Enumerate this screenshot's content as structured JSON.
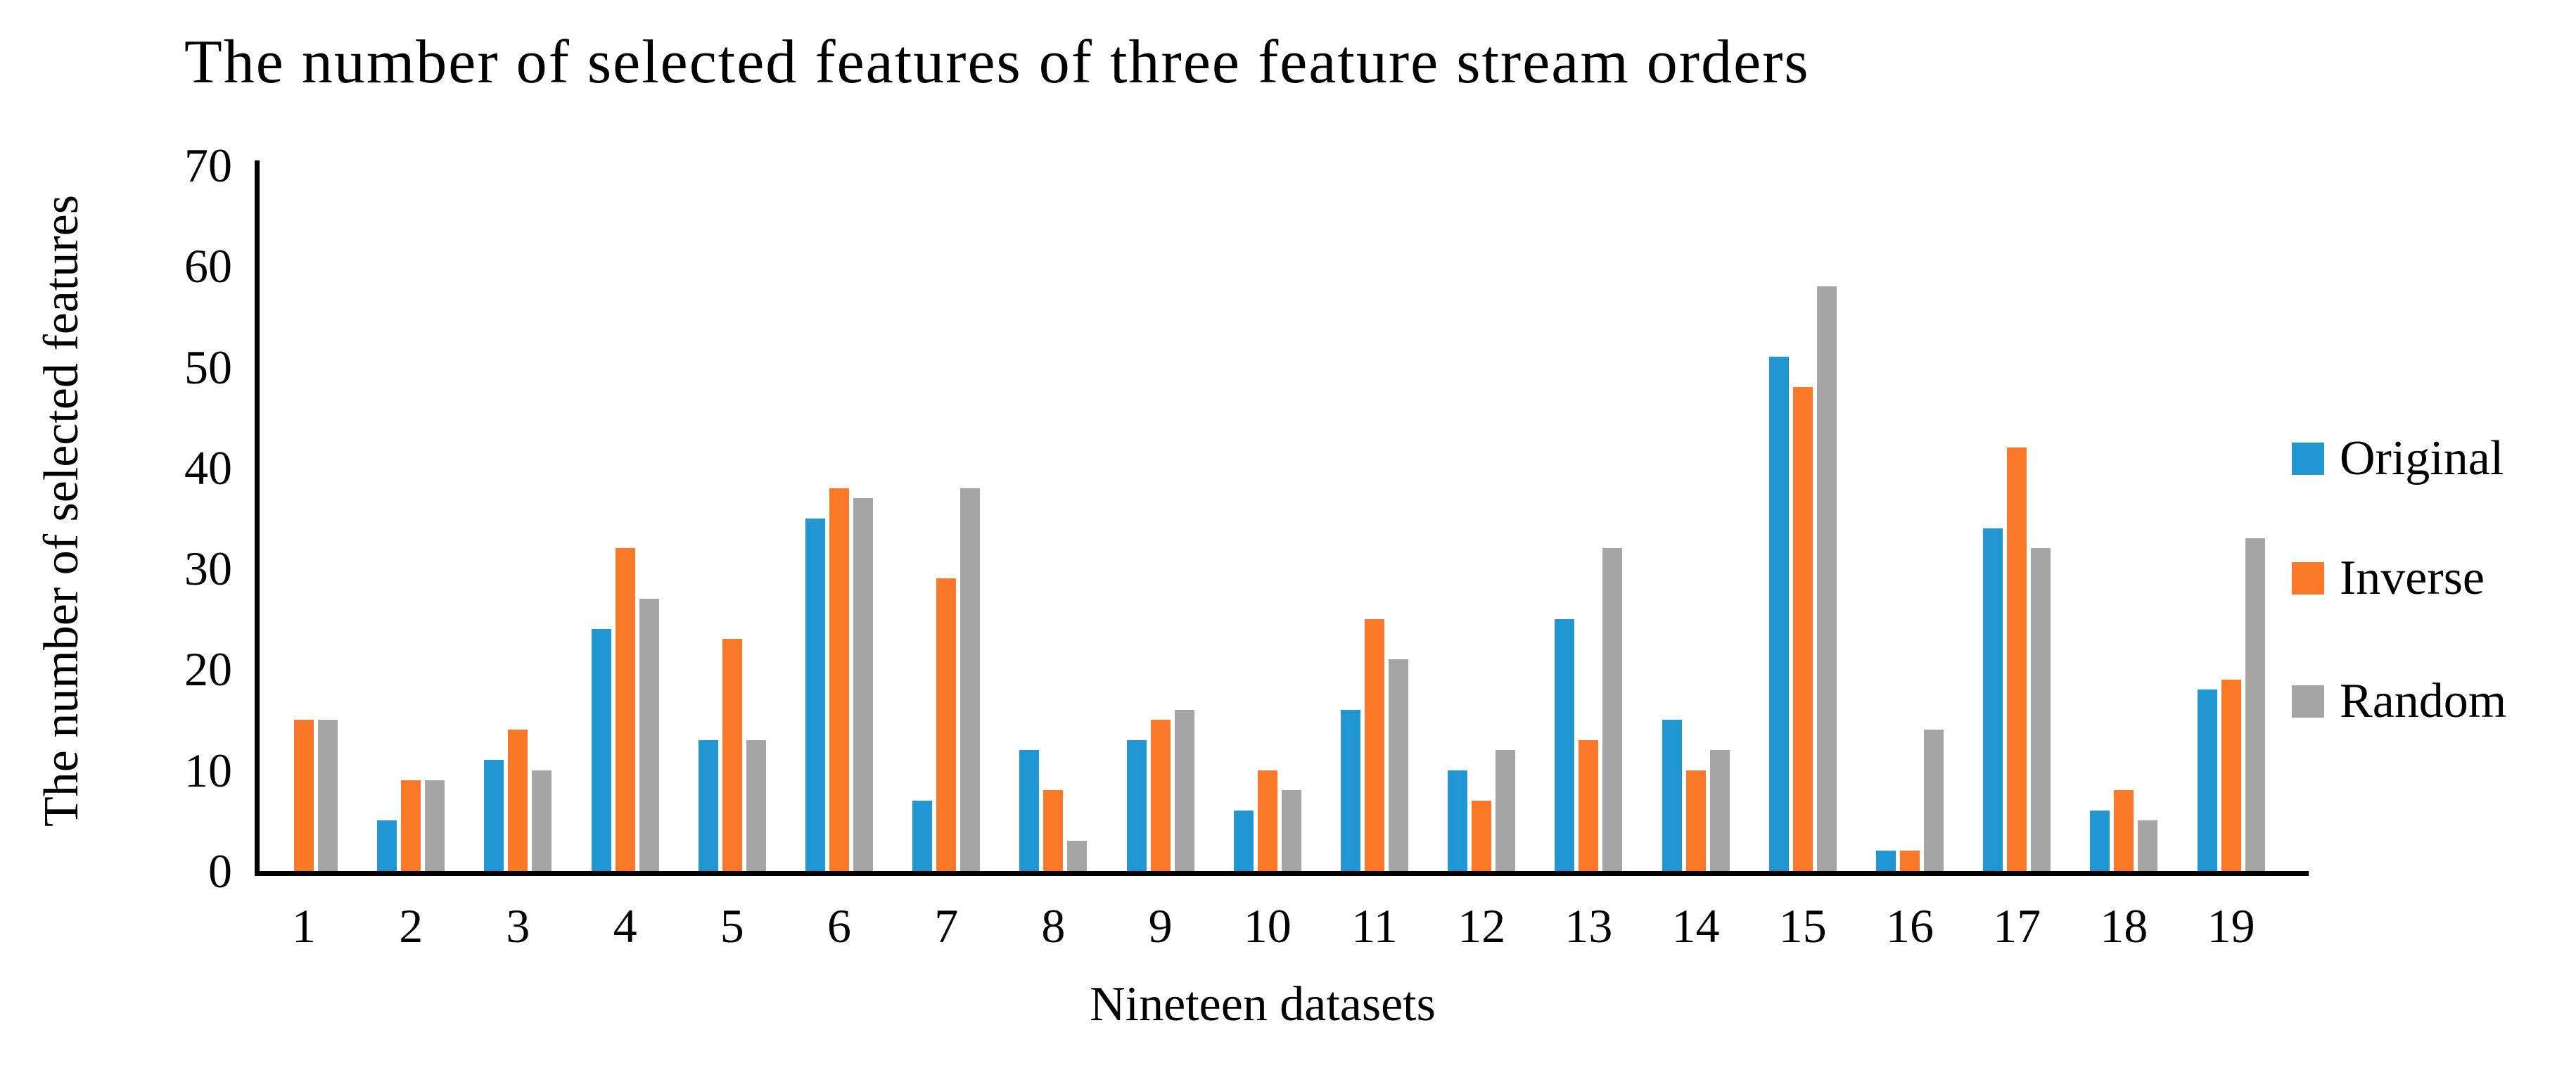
{
  "chart_data": {
    "type": "bar",
    "title": "The number of selected features of three feature stream orders",
    "xlabel": "Nineteen datasets",
    "ylabel": "The number of selected features",
    "categories": [
      "1",
      "2",
      "3",
      "4",
      "5",
      "6",
      "7",
      "8",
      "9",
      "10",
      "11",
      "12",
      "13",
      "14",
      "15",
      "16",
      "17",
      "18",
      "19"
    ],
    "series": [
      {
        "name": "Original",
        "color": "#2196D3",
        "values": [
          0,
          5,
          11,
          24,
          13,
          35,
          7,
          12,
          13,
          6,
          16,
          10,
          25,
          15,
          51,
          2,
          34,
          6,
          18
        ]
      },
      {
        "name": "Inverse",
        "color": "#FB7828",
        "values": [
          15,
          9,
          14,
          32,
          23,
          38,
          29,
          8,
          15,
          10,
          25,
          7,
          13,
          10,
          48,
          2,
          42,
          8,
          19
        ]
      },
      {
        "name": "Random",
        "color": "#A5A5A5",
        "values": [
          15,
          9,
          10,
          27,
          13,
          37,
          38,
          3,
          16,
          8,
          21,
          12,
          32,
          12,
          58,
          14,
          32,
          5,
          33
        ]
      }
    ],
    "ylim": [
      0,
      70
    ],
    "yticks": [
      0,
      10,
      20,
      30,
      40,
      50,
      60,
      70
    ],
    "grid": false,
    "legend_position": "right",
    "axis_color": "#000000",
    "text_color": "#000000"
  }
}
